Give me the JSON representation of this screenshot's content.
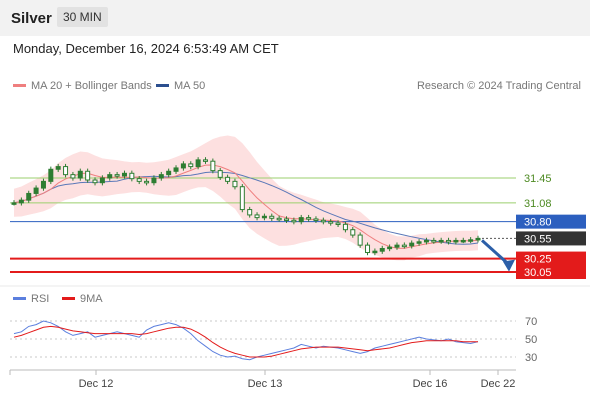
{
  "header": {
    "symbol": "Silver",
    "timeframe": "30 MIN"
  },
  "datetime": "Monday, December 16, 2024 6:53:49 AM CET",
  "legend": {
    "ma_bb": "MA 20 + Bollinger Bands",
    "ma50": "MA 50",
    "credit": "Research © 2024 Trading Central"
  },
  "rsi_legend": {
    "rsi": "RSI",
    "ma": "9MA"
  },
  "colors": {
    "ma20": "#ef7f7f",
    "bollinger_fill": "#fde0e0",
    "ma50": "#5a78b8",
    "candle": "#2e7d32",
    "support_green": "#9bcf6e",
    "pivot_blue": "#2c5fbf",
    "current_price": "#333333",
    "support_red": "#e31b1b",
    "rsi": "#5b7fde",
    "rsi_ma": "#e31b1b",
    "arrow": "#2c5fa8"
  },
  "chart_data": [
    {
      "type": "candlestick",
      "title": "Silver",
      "timeframe": "30 MIN",
      "x_labels": [
        "Dec 12",
        "Dec 13",
        "Dec 16",
        "Dec 22"
      ],
      "series": [
        {
          "name": "MA 20 + Bollinger Bands"
        },
        {
          "name": "MA 50"
        }
      ],
      "prices": [
        31.08,
        31.12,
        31.22,
        31.3,
        31.4,
        31.58,
        31.62,
        31.5,
        31.45,
        31.55,
        31.42,
        31.38,
        31.45,
        31.5,
        31.48,
        31.52,
        31.44,
        31.4,
        31.38,
        31.45,
        31.5,
        31.55,
        31.6,
        31.66,
        31.62,
        31.72,
        31.7,
        31.56,
        31.46,
        31.4,
        31.32,
        30.98,
        30.9,
        30.86,
        30.88,
        30.85,
        30.84,
        30.82,
        30.8,
        30.86,
        30.84,
        30.82,
        30.8,
        30.78,
        30.76,
        30.68,
        30.6,
        30.45,
        30.34,
        30.36,
        30.4,
        30.42,
        30.45,
        30.44,
        30.48,
        30.5,
        30.52,
        30.51,
        30.52,
        30.5,
        30.52,
        30.52,
        30.53,
        30.55
      ],
      "horizontal_levels": [
        {
          "label": "31.45",
          "value": 31.45,
          "style": "support_green"
        },
        {
          "label": "31.08",
          "value": 31.08,
          "style": "support_green"
        },
        {
          "label": "30.80",
          "value": 30.8,
          "style": "pivot_blue"
        },
        {
          "label": "30.55",
          "value": 30.55,
          "style": "current_price"
        },
        {
          "label": "30.25",
          "value": 30.25,
          "style": "support_red"
        },
        {
          "label": "30.05",
          "value": 30.05,
          "style": "support_red"
        }
      ],
      "forecast_arrow": {
        "from": 30.55,
        "to": 30.25
      }
    },
    {
      "type": "line",
      "title": "RSI",
      "series": [
        {
          "name": "RSI"
        },
        {
          "name": "9MA"
        }
      ],
      "y_ticks": [
        70,
        50,
        30
      ],
      "ylim": [
        20,
        80
      ],
      "rsi": [
        56,
        58,
        64,
        66,
        70,
        68,
        64,
        58,
        54,
        56,
        58,
        52,
        54,
        56,
        58,
        56,
        54,
        52,
        60,
        64,
        66,
        68,
        66,
        62,
        56,
        48,
        42,
        36,
        32,
        30,
        31,
        28,
        27,
        30,
        32,
        34,
        36,
        38,
        40,
        44,
        42,
        40,
        42,
        41,
        40,
        38,
        36,
        34,
        36,
        40,
        42,
        44,
        46,
        48,
        50,
        52,
        50,
        49,
        48,
        50,
        47,
        46,
        45,
        47
      ],
      "rsi_ma": [
        52,
        54,
        57,
        60,
        63,
        64,
        63,
        61,
        59,
        58,
        57,
        56,
        56,
        56,
        56,
        56,
        56,
        55,
        56,
        58,
        60,
        62,
        63,
        63,
        61,
        57,
        52,
        46,
        41,
        37,
        34,
        32,
        30,
        30,
        30,
        31,
        33,
        35,
        37,
        39,
        40,
        41,
        41,
        41,
        41,
        40,
        39,
        38,
        37,
        38,
        39,
        40,
        42,
        44,
        46,
        47,
        48,
        48,
        48,
        48,
        48,
        47,
        47,
        47
      ]
    }
  ]
}
